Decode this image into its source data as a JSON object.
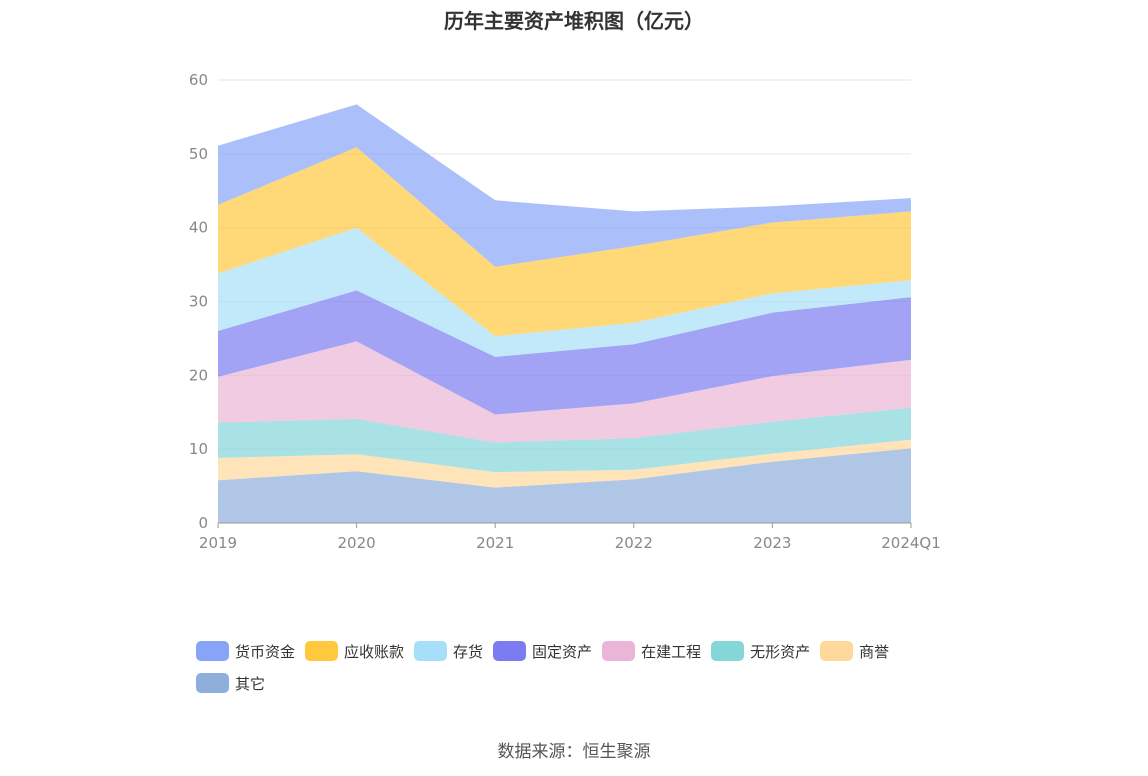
{
  "chart_data": {
    "type": "area",
    "stacked": true,
    "title": "历年主要资产堆积图（亿元）",
    "x": [
      "2019",
      "2020",
      "2021",
      "2022",
      "2023",
      "2024Q1"
    ],
    "ylim": [
      0,
      60
    ],
    "yticks": [
      "0",
      "10",
      "20",
      "30",
      "40",
      "50",
      "60"
    ],
    "grid": true,
    "legend_position": "bottom",
    "series": [
      {
        "name": "其它",
        "color": "#8eaedb",
        "values": [
          5.8,
          7.0,
          4.8,
          5.9,
          8.3,
          10.1
        ]
      },
      {
        "name": "商誉",
        "color": "#ffd89c",
        "values": [
          3.0,
          2.3,
          2.1,
          1.3,
          1.1,
          1.2
        ]
      },
      {
        "name": "无形资产",
        "color": "#85d6d9",
        "values": [
          4.8,
          4.8,
          4.0,
          4.3,
          4.3,
          4.3
        ]
      },
      {
        "name": "在建工程",
        "color": "#eab5d6",
        "values": [
          6.2,
          10.5,
          3.8,
          4.7,
          6.2,
          6.5
        ]
      },
      {
        "name": "固定资产",
        "color": "#7b7cf1",
        "values": [
          6.2,
          6.9,
          7.8,
          8.0,
          8.6,
          8.5
        ]
      },
      {
        "name": "存货",
        "color": "#a8dff8",
        "values": [
          7.8,
          8.5,
          2.8,
          2.9,
          2.6,
          2.3
        ]
      },
      {
        "name": "应收账款",
        "color": "#ffc93d",
        "values": [
          9.3,
          10.9,
          9.4,
          10.4,
          9.6,
          9.3
        ]
      },
      {
        "name": "货币资金",
        "color": "#87a4f9",
        "values": [
          8.0,
          5.8,
          9.0,
          4.7,
          2.2,
          1.8
        ]
      }
    ]
  },
  "legend_order": [
    "货币资金",
    "应收账款",
    "存货",
    "固定资产",
    "在建工程",
    "无形资产",
    "商誉",
    "其它"
  ],
  "source_text": "数据来源：恒生聚源"
}
